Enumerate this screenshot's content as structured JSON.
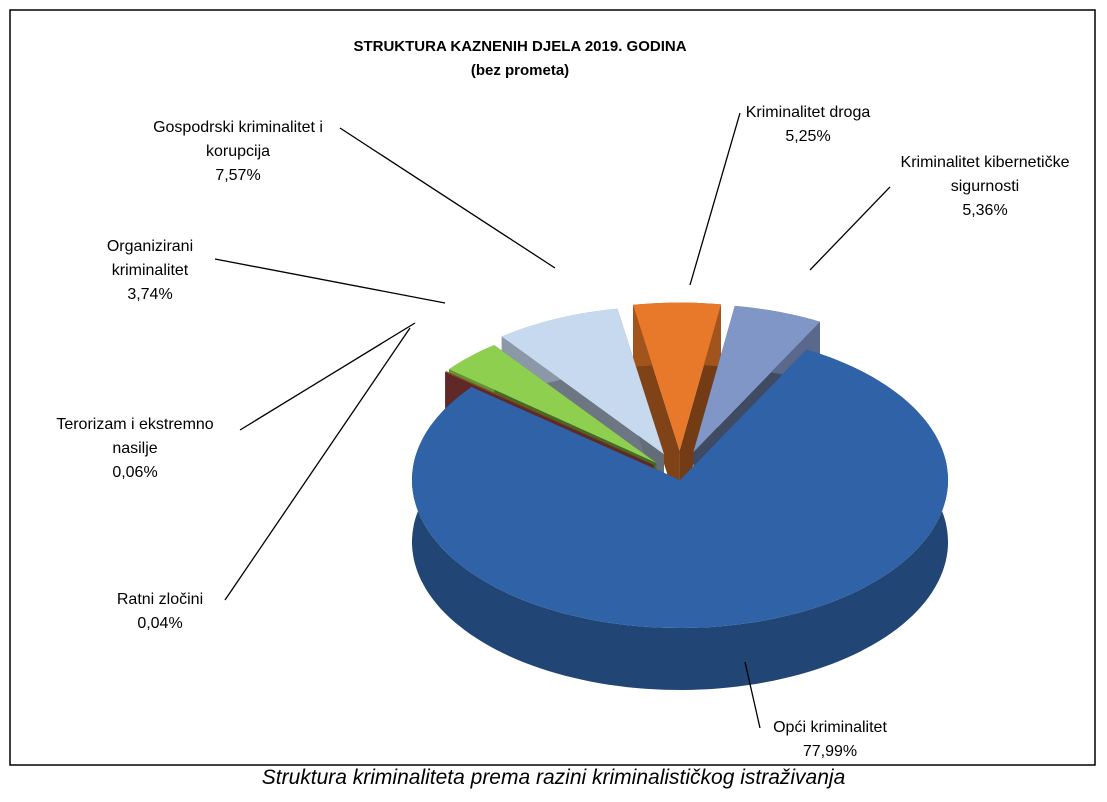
{
  "chart_data": {
    "type": "pie",
    "title": "STRUKTURA KAZNENIH DJELA 2019. GODINA",
    "subtitle": "(bez prometa)",
    "caption": "Struktura kriminaliteta prema razini kriminalističkog istraživanja",
    "categories": [
      "Kriminalitet droga",
      "Kriminalitet kibernetičke sigurnosti",
      "Opći kriminalitet",
      "Ratni zločini",
      "Terorizam i ekstremno nasilje",
      "Organizirani kriminalitet",
      "Gospodrski kriminalitet i korupcija"
    ],
    "values": [
      5.25,
      5.36,
      77.99,
      0.04,
      0.06,
      3.74,
      7.57
    ],
    "value_labels": [
      "5,25%",
      "5,36%",
      "77,99%",
      "0,04%",
      "0,06%",
      "3,74%",
      "7,57%"
    ],
    "colors": [
      "#e8782a",
      "#8096c6",
      "#2f62a6",
      "#c0504d",
      "#7f5a00",
      "#8fcf4f",
      "#c6d9ef"
    ]
  }
}
